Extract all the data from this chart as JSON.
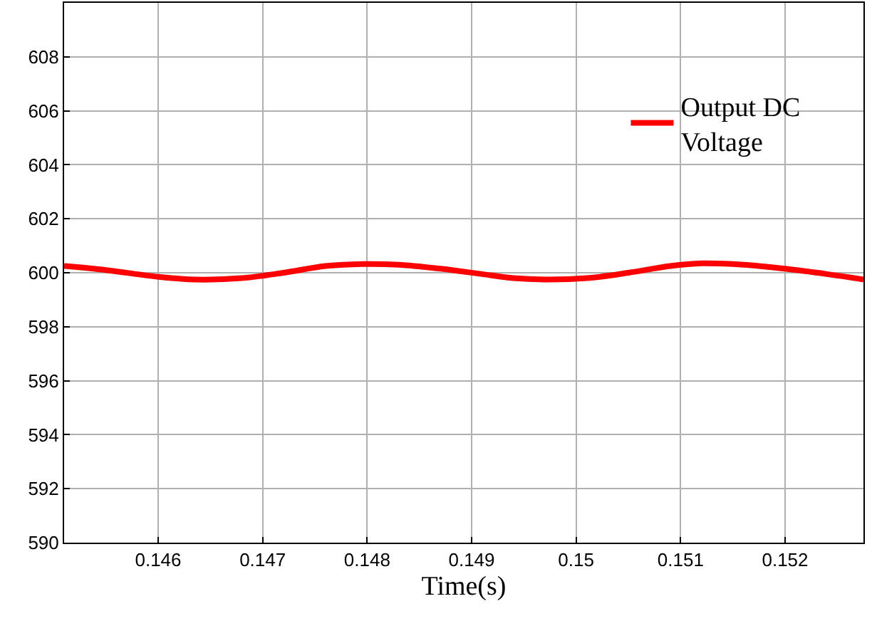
{
  "chart_data": {
    "type": "line",
    "xlabel": "Time(s)",
    "xlim": [
      0.1451,
      0.15275
    ],
    "ylim": [
      590,
      610
    ],
    "xticks": [
      0.146,
      0.147,
      0.148,
      0.149,
      0.15,
      0.151,
      0.152
    ],
    "yticks": [
      590,
      592,
      594,
      596,
      598,
      600,
      602,
      604,
      606,
      608
    ],
    "grid": true,
    "legend": "top right",
    "marker": "none",
    "line_style": "solid",
    "series": [
      {
        "name": "Output DC Voltage",
        "color": "#ff0000",
        "x": [
          0.1451,
          0.1455,
          0.146,
          0.14635,
          0.1468,
          0.1472,
          0.1476,
          0.1479,
          0.1483,
          0.1487,
          0.1491,
          0.1494,
          0.1497,
          0.1501,
          0.1505,
          0.1509,
          0.1512,
          0.1516,
          0.152,
          0.1524,
          0.15275
        ],
        "values": [
          600.25,
          600.1,
          599.85,
          599.75,
          599.8,
          600.0,
          600.25,
          600.32,
          600.3,
          600.15,
          599.95,
          599.8,
          599.75,
          599.8,
          600.0,
          600.25,
          600.35,
          600.3,
          600.15,
          599.95,
          599.75
        ]
      }
    ]
  }
}
